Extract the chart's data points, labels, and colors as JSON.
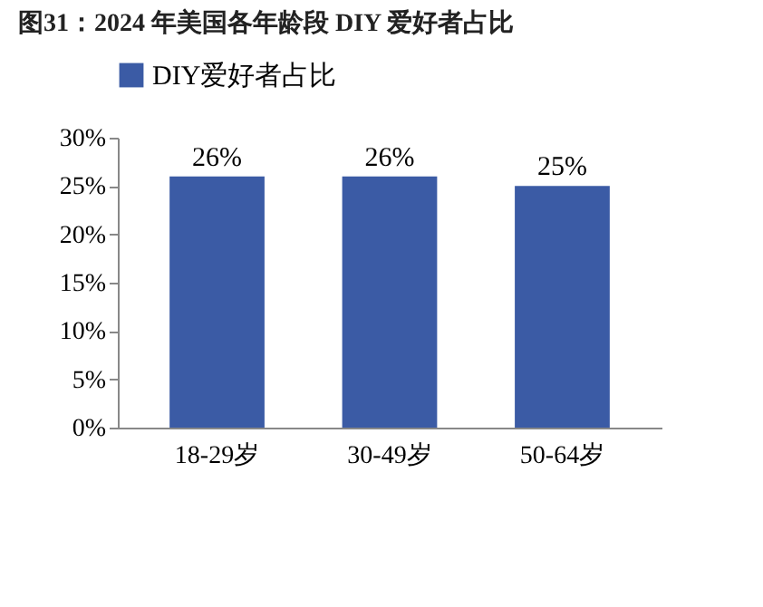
{
  "chart_data": {
    "type": "bar",
    "title": "图31：2024 年美国各年龄段 DIY 爱好者占比",
    "categories": [
      "18-29岁",
      "30-49岁",
      "50-64岁"
    ],
    "series": [
      {
        "name": "DIY爱好者占比",
        "color": "#3b5ba5",
        "values": [
          26,
          26,
          25
        ],
        "value_labels": [
          "26%",
          "26%",
          "25%"
        ]
      }
    ],
    "ylim": [
      0,
      30
    ],
    "yticks": [
      {
        "value": 0,
        "label": "0%"
      },
      {
        "value": 5,
        "label": "5%"
      },
      {
        "value": 10,
        "label": "10%"
      },
      {
        "value": 15,
        "label": "15%"
      },
      {
        "value": 20,
        "label": "20%"
      },
      {
        "value": 25,
        "label": "25%"
      },
      {
        "value": 30,
        "label": "30%"
      }
    ],
    "grid": false,
    "legend": "top"
  }
}
